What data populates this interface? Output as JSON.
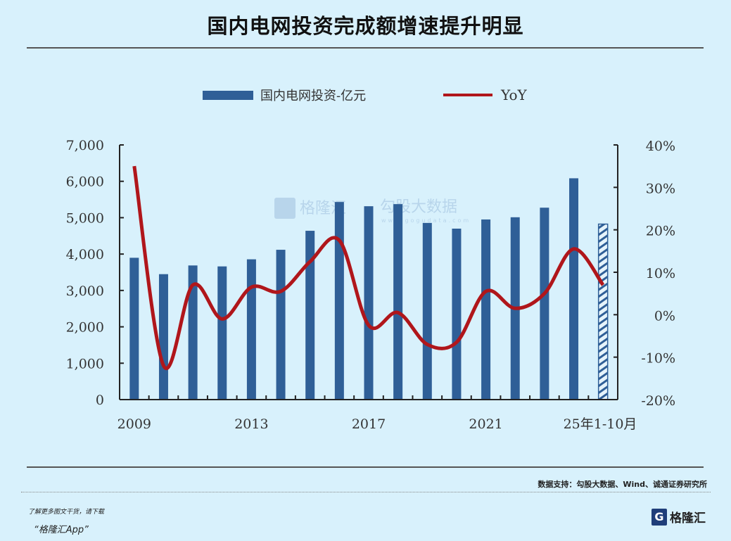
{
  "title": "国内电网投资完成额增速提升明显",
  "source": "数据支持：勾股大数据、Wind、诚通证券研究所",
  "footer": {
    "more": "了解更多图文干货，请下载",
    "app": "“格隆汇App”",
    "logo": "格隆汇"
  },
  "watermark": {
    "brand": "格隆汇",
    "data": "勾股大数据",
    "url": "www.gogudata.com"
  },
  "colors": {
    "bar": "#2f5f97",
    "line": "#b0161b",
    "background": "#d8f1fc"
  },
  "chart_data": {
    "type": "bar+line",
    "categories": [
      "2009",
      "2010",
      "2011",
      "2012",
      "2013",
      "2014",
      "2015",
      "2016",
      "2017",
      "2018",
      "2019",
      "2020",
      "2021",
      "2022",
      "2023",
      "2024",
      "25年1-10月"
    ],
    "x_tick_labels": [
      "2009",
      "2013",
      "2017",
      "2021",
      "25年1-10月"
    ],
    "x_tick_indices": [
      0,
      4,
      8,
      12,
      16
    ],
    "series": [
      {
        "name": "国内电网投资-亿元",
        "type": "bar",
        "axis": "left",
        "values": [
          3898,
          3448,
          3687,
          3661,
          3856,
          4118,
          4640,
          5431,
          5315,
          5373,
          4856,
          4699,
          4951,
          5012,
          5275,
          6083,
          4824
        ]
      },
      {
        "name": "YoY",
        "type": "line",
        "axis": "right",
        "values": [
          35,
          -12,
          7,
          -1,
          6.5,
          5.5,
          12.5,
          17.5,
          -2.5,
          0.5,
          -7,
          -6.5,
          5.5,
          1.5,
          5,
          15.5,
          7
        ]
      }
    ],
    "left_axis": {
      "range": [
        0,
        7000
      ],
      "ticks": [
        "0",
        "1,000",
        "2,000",
        "3,000",
        "4,000",
        "5,000",
        "6,000",
        "7,000"
      ]
    },
    "right_axis": {
      "range": [
        -20,
        40
      ],
      "ticks": [
        "-20%",
        "-10%",
        "0%",
        "10%",
        "20%",
        "30%",
        "40%"
      ]
    },
    "legend_position": "top-center",
    "last_bar_hatched": true
  }
}
